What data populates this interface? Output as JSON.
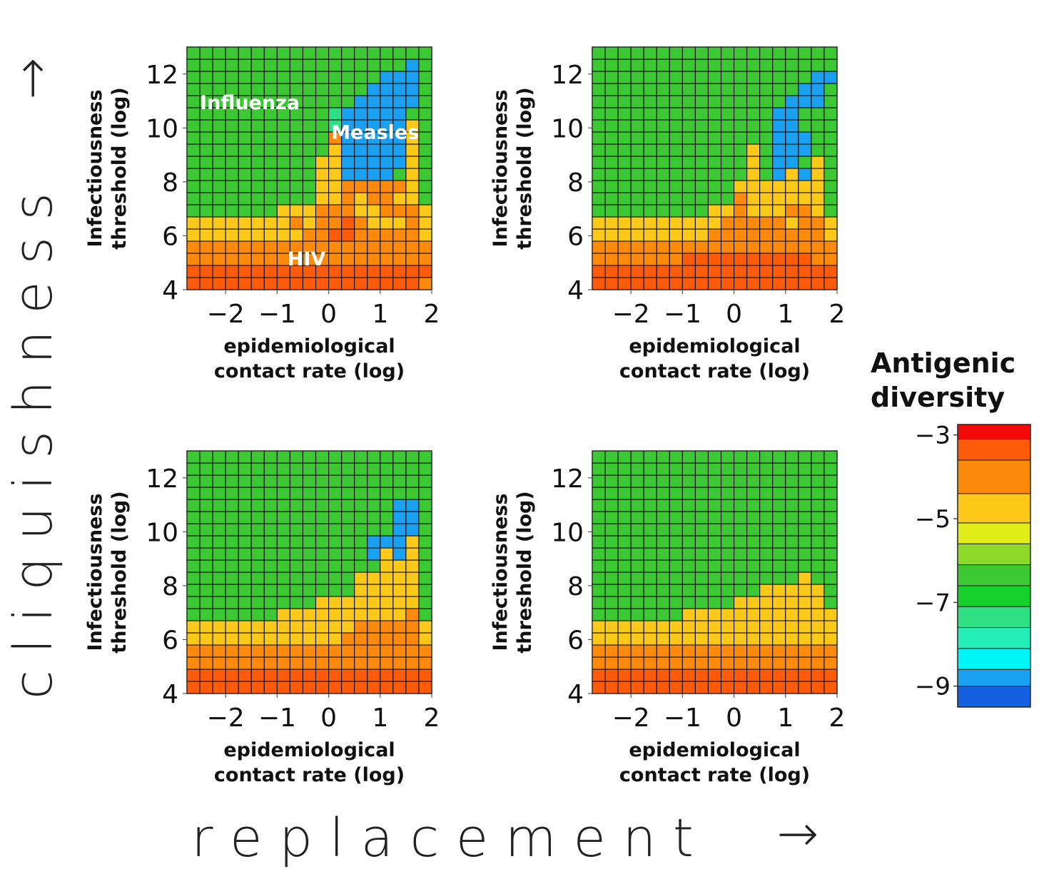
{
  "figure": {
    "x_arrow_label": "r e p l a c e m e n t",
    "y_arrow_label": "c l i q u i s h n e s s",
    "arrow_glyph": "→"
  },
  "colorbar": {
    "title_lines": [
      "Antigenic",
      "diversity"
    ],
    "range": [
      -9.5,
      -2.75
    ],
    "tick_labels": [
      "−3",
      "−5",
      "−7",
      "−9"
    ],
    "tick_values": [
      -3,
      -5,
      -7,
      -9
    ],
    "colors": [
      "#1560e0",
      "#1aa0f0",
      "#00f6f6",
      "#22eeb8",
      "#2edf84",
      "#18d02c",
      "#3cc832",
      "#8ed82a",
      "#e2ec18",
      "#fdc918",
      "#fd8a0a",
      "#fd5a0a",
      "#f50a0a"
    ],
    "bin_edges": [
      -9.5,
      -9.0,
      -8.6,
      -8.1,
      -7.6,
      -7.1,
      -6.6,
      -6.1,
      -5.6,
      -5.1,
      -4.4,
      -3.6,
      -3.1,
      -2.75
    ]
  },
  "chart_data": [
    {
      "type": "heatmap",
      "xlabel": [
        "epidemiological",
        "contact rate (log)"
      ],
      "ylabel": [
        "Infectiousness",
        "threshold (log)"
      ],
      "xlim": [
        -2.75,
        2.0
      ],
      "ylim": [
        4,
        13
      ],
      "x_ticks": [
        -2,
        -1,
        0,
        1,
        2
      ],
      "x_tick_labels": [
        "−2",
        "−1",
        "0",
        "1",
        "2"
      ],
      "y_ticks": [
        4,
        6,
        8,
        10,
        12
      ],
      "y_tick_labels": [
        "4",
        "6",
        "8",
        "10",
        "12"
      ],
      "x_start": -2.75,
      "x_step": 0.25,
      "y_start": 4,
      "y_step": 0.45,
      "annotations": [
        {
          "text": "Influenza",
          "x": -2.5,
          "y": 10.7
        },
        {
          "text": "Measles",
          "x": 0.05,
          "y": 9.6
        },
        {
          "text": "HIV",
          "x": -0.8,
          "y": 4.9
        }
      ],
      "z_codes": [
        "4444444444444444443",
        "4444444444444444444",
        "3333333333333333333",
        "3333333333333333333",
        "2222222223344333332",
        "2222222232334322232",
        "6666666222333223332",
        "6666666666223233226",
        "6666666666223333326",
        "6666666666220000626",
        "6666666666220000026",
        "6666666666620000026",
        "6666666666630000026",
        "6666666666670000026",
        "6666666666670000066",
        "6666666666666000006",
        "6666666666666600006",
        "6666666666666660006",
        "6666666666666666606",
        "6666666666666666666"
      ]
    },
    {
      "type": "heatmap",
      "xlabel": [
        "epidemiological",
        "contact rate (log)"
      ],
      "ylabel": [
        "Infectiousness",
        "threshold (log)"
      ],
      "xlim": [
        -2.75,
        2.0
      ],
      "ylim": [
        4,
        13
      ],
      "x_ticks": [
        -2,
        -1,
        0,
        1,
        2
      ],
      "x_tick_labels": [
        "−2",
        "−1",
        "0",
        "1",
        "2"
      ],
      "y_ticks": [
        4,
        6,
        8,
        10,
        12
      ],
      "y_tick_labels": [
        "4",
        "6",
        "8",
        "10",
        "12"
      ],
      "x_start": -2.75,
      "x_step": 0.25,
      "y_start": 4,
      "y_step": 0.45,
      "annotations": [],
      "z_codes": [
        "4444444444444444444",
        "4444444444444444444",
        "3333333444444444433",
        "3333333333333333333",
        "2222222223333333332",
        "2222222222333332332",
        "6666666662232223326",
        "6666666666632222226",
        "6666666666622222226",
        "6666666666662602026",
        "6666666666662600626",
        "6666666666662600066",
        "6666666666666600066",
        "6666666666666600666",
        "6666666666666600666",
        "6666666666666660006",
        "6666666666666666006",
        "6666666666666666600",
        "6666666666666666666",
        "6666666666666666666"
      ]
    },
    {
      "type": "heatmap",
      "xlabel": [
        "epidemiological",
        "contact rate (log)"
      ],
      "ylabel": [
        "Infectiousness",
        "threshold (log)"
      ],
      "xlim": [
        -2.75,
        2.0
      ],
      "ylim": [
        4,
        13
      ],
      "x_ticks": [
        -2,
        -1,
        0,
        1,
        2
      ],
      "x_tick_labels": [
        "−2",
        "−1",
        "0",
        "1",
        "2"
      ],
      "y_ticks": [
        4,
        6,
        8,
        10,
        12
      ],
      "y_tick_labels": [
        "4",
        "6",
        "8",
        "10",
        "12"
      ],
      "x_start": -2.75,
      "x_step": 0.25,
      "y_start": 4,
      "y_step": 0.45,
      "annotations": [],
      "z_codes": [
        "4444444444444444444",
        "4444444444444444444",
        "3333333333333333333",
        "3333333333333333333",
        "2222222222223333332",
        "2222222222222333332",
        "6666666222222222236",
        "6666666666222222226",
        "6666666666666222226",
        "6666666666666222226",
        "6666666666666662226",
        "6666666666666602026",
        "6666666666666600026",
        "6666666666666666006",
        "6666666666666666006",
        "6666666666666666006",
        "6666666666666666666",
        "6666666666666666666",
        "6666666666666666666",
        "6666666666666666666"
      ]
    },
    {
      "type": "heatmap",
      "xlabel": [
        "epidemiological",
        "contact rate (log)"
      ],
      "ylabel": [
        "Infectiousness",
        "threshold (log)"
      ],
      "xlim": [
        -2.75,
        2.0
      ],
      "ylim": [
        4,
        13
      ],
      "x_ticks": [
        -2,
        -1,
        0,
        1,
        2
      ],
      "x_tick_labels": [
        "−2",
        "−1",
        "0",
        "1",
        "2"
      ],
      "y_ticks": [
        4,
        6,
        8,
        10,
        12
      ],
      "y_tick_labels": [
        "4",
        "6",
        "8",
        "10",
        "12"
      ],
      "x_start": -2.75,
      "x_step": 0.25,
      "y_start": 4,
      "y_step": 0.45,
      "annotations": [],
      "z_codes": [
        "4444444444444444444",
        "4444444444444444444",
        "3333333333333333333",
        "3333333333333333333",
        "2222222222222222222",
        "2222222222222222222",
        "6666666222222222222",
        "6666666666622222226",
        "6666666666666222226",
        "6666666666666666266",
        "6666666666666666666",
        "6666666666666666666",
        "6666666666666666666",
        "6666666666666666666",
        "6666666666666666666",
        "6666666666666666666",
        "6666666666666666666",
        "6666666666666666666",
        "6666666666666666666",
        "6666666666666666666"
      ]
    }
  ]
}
